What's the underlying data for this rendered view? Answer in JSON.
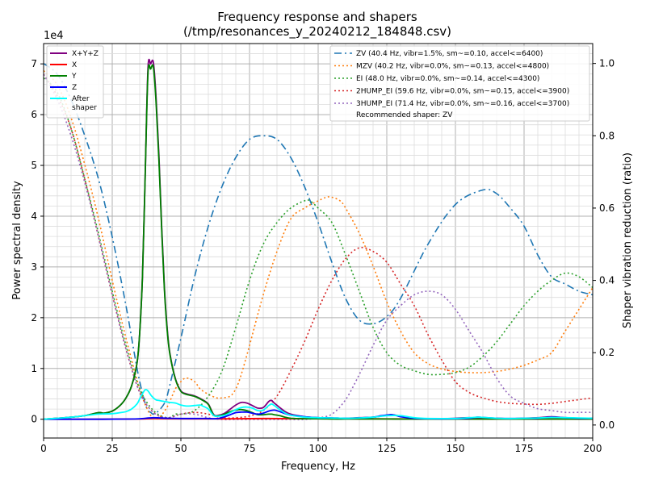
{
  "chart_data": {
    "type": "line",
    "title": "Frequency response and shapers",
    "subtitle": "(/tmp/resonances_y_20240212_184848.csv)",
    "xlabel": "Frequency, Hz",
    "ylabel": "Power spectral density",
    "y2label": "Shaper vibration reduction (ratio)",
    "y_offset_label": "1e4",
    "xlim": [
      0,
      200
    ],
    "ylim": [
      -3700,
      74000
    ],
    "y2lim": [
      -0.036,
      1.055
    ],
    "x_ticks": [
      0,
      25,
      50,
      75,
      100,
      125,
      150,
      175,
      200
    ],
    "x_tick_labels": [
      "0",
      "25",
      "50",
      "75",
      "100",
      "125",
      "150",
      "175",
      "200"
    ],
    "y_ticks": [
      0,
      10000,
      20000,
      30000,
      40000,
      50000,
      60000,
      70000
    ],
    "y_tick_labels": [
      "0",
      "1",
      "2",
      "3",
      "4",
      "5",
      "6",
      "7"
    ],
    "y2_ticks": [
      0,
      0.2,
      0.4,
      0.6,
      0.8,
      1.0
    ],
    "y2_tick_labels": [
      "0.0",
      "0.2",
      "0.4",
      "0.6",
      "0.8",
      "1.0"
    ],
    "grid": true,
    "legend_left_position": "top-left",
    "legend_right_position": "top-right",
    "psd_series": [
      {
        "name": "X+Y+Z",
        "color": "#800080",
        "x": [
          0,
          5,
          10,
          15,
          20,
          22,
          25,
          28,
          30,
          32,
          34,
          35,
          36,
          37,
          38,
          39,
          40,
          41,
          42,
          43,
          44,
          45,
          46,
          48,
          50,
          52,
          55,
          58,
          60,
          62,
          64,
          66,
          68,
          70,
          72,
          74,
          76,
          78,
          80,
          82,
          83,
          84,
          86,
          88,
          90,
          95,
          100,
          105,
          110,
          115,
          120,
          125,
          127,
          130,
          135,
          140,
          145,
          150,
          155,
          160,
          165,
          170,
          175,
          180,
          185,
          190,
          195,
          200
        ],
        "y": [
          0,
          200,
          400,
          700,
          1300,
          1200,
          1600,
          2800,
          4200,
          6500,
          11000,
          17000,
          28000,
          48000,
          69000,
          70000,
          70200,
          63000,
          52000,
          38000,
          26000,
          18000,
          13000,
          8000,
          5600,
          5000,
          4600,
          3800,
          3000,
          900,
          800,
          1200,
          2000,
          2800,
          3300,
          3200,
          2700,
          2200,
          2300,
          3500,
          3700,
          3200,
          2300,
          1500,
          1000,
          500,
          300,
          250,
          200,
          300,
          400,
          800,
          900,
          600,
          200,
          100,
          100,
          200,
          300,
          200,
          200,
          100,
          200,
          300,
          500,
          300,
          200,
          200
        ]
      },
      {
        "name": "X",
        "color": "#ff0000",
        "x": [
          0,
          20,
          35,
          40,
          45,
          60,
          70,
          80,
          90,
          100,
          110,
          120,
          130,
          140,
          160,
          180,
          200
        ],
        "y": [
          0,
          0,
          50,
          150,
          100,
          80,
          100,
          150,
          120,
          100,
          90,
          80,
          60,
          50,
          40,
          30,
          20
        ]
      },
      {
        "name": "Y",
        "color": "#008000",
        "x": [
          0,
          5,
          10,
          15,
          20,
          22,
          25,
          28,
          30,
          32,
          34,
          35,
          36,
          37,
          38,
          39,
          40,
          41,
          42,
          43,
          44,
          45,
          46,
          48,
          50,
          52,
          55,
          58,
          60,
          62,
          64,
          66,
          68,
          70,
          72,
          74,
          76,
          78,
          80,
          82,
          83,
          84,
          86,
          88,
          90,
          95,
          100,
          105,
          110,
          115,
          120,
          125,
          130,
          135,
          140,
          150,
          160,
          170,
          180,
          190,
          200
        ],
        "y": [
          0,
          200,
          400,
          700,
          1300,
          1200,
          1600,
          2800,
          4200,
          6500,
          11000,
          17000,
          28000,
          48000,
          68000,
          69000,
          69300,
          62000,
          51000,
          37500,
          25500,
          17600,
          12800,
          7900,
          5500,
          4900,
          4500,
          3700,
          2900,
          800,
          700,
          1000,
          1500,
          1800,
          1900,
          1700,
          1300,
          900,
          900,
          1000,
          1000,
          900,
          700,
          400,
          200,
          100,
          100,
          50,
          50,
          50,
          50,
          50,
          40,
          40,
          40,
          30,
          30,
          30,
          30,
          30,
          30
        ]
      },
      {
        "name": "Z",
        "color": "#0000ff",
        "x": [
          0,
          20,
          30,
          35,
          40,
          45,
          50,
          55,
          60,
          62,
          64,
          66,
          68,
          70,
          72,
          74,
          76,
          78,
          80,
          82,
          84,
          86,
          88,
          90,
          95,
          100,
          105,
          110,
          115,
          120,
          123,
          126,
          128,
          130,
          135,
          140,
          150,
          155,
          158,
          160,
          165,
          170,
          175,
          180,
          185,
          190,
          195,
          200
        ],
        "y": [
          0,
          0,
          30,
          100,
          300,
          200,
          150,
          150,
          150,
          100,
          200,
          500,
          900,
          1300,
          1400,
          1400,
          1200,
          1000,
          1200,
          1600,
          1800,
          1500,
          1100,
          800,
          500,
          300,
          250,
          200,
          250,
          400,
          700,
          900,
          800,
          500,
          200,
          100,
          100,
          200,
          400,
          350,
          200,
          150,
          200,
          200,
          400,
          300,
          200,
          200
        ]
      },
      {
        "name": "After\nshaper",
        "color": "#00ffff",
        "x": [
          0,
          5,
          10,
          15,
          20,
          25,
          28,
          30,
          32,
          34,
          35,
          36,
          37,
          38,
          39,
          40,
          41,
          42,
          43,
          44,
          45,
          46,
          48,
          50,
          52,
          55,
          57,
          58,
          60,
          62,
          64,
          66,
          68,
          70,
          72,
          74,
          76,
          78,
          80,
          82,
          83,
          84,
          86,
          88,
          90,
          95,
          100,
          105,
          110,
          115,
          120,
          125,
          130,
          135,
          140,
          150,
          155,
          158,
          160,
          165,
          170,
          175,
          180,
          185,
          190,
          195,
          200
        ],
        "y": [
          0,
          200,
          400,
          700,
          1000,
          1100,
          1300,
          1500,
          2000,
          3000,
          4000,
          5000,
          5800,
          5600,
          4800,
          4200,
          3800,
          3700,
          3600,
          3500,
          3400,
          3300,
          3200,
          2800,
          2600,
          2700,
          2800,
          2600,
          2000,
          700,
          600,
          800,
          1300,
          1900,
          2300,
          2400,
          2200,
          1700,
          1800,
          2700,
          3000,
          2700,
          1900,
          1200,
          800,
          400,
          300,
          250,
          200,
          250,
          400,
          700,
          700,
          300,
          150,
          150,
          300,
          400,
          350,
          200,
          150,
          200,
          250,
          350,
          300,
          250,
          200
        ]
      }
    ],
    "shaper_series": [
      {
        "name": "ZV (40.4 Hz, vibr=1.5%, sm~=0.10, accel<=6400)",
        "color": "#1f77b4",
        "dash": "dashdot",
        "x": [
          0,
          5,
          10,
          15,
          20,
          25,
          30,
          33,
          35,
          37,
          38,
          39,
          40,
          42,
          44,
          45,
          50,
          55,
          60,
          65,
          70,
          75,
          80,
          85,
          90,
          95,
          100,
          105,
          110,
          115,
          120,
          125,
          130,
          140,
          150,
          160,
          165,
          170,
          175,
          180,
          185,
          190,
          195,
          200
        ],
        "y": [
          1.0,
          0.97,
          0.9,
          0.8,
          0.68,
          0.52,
          0.33,
          0.2,
          0.12,
          0.06,
          0.04,
          0.035,
          0.03,
          0.04,
          0.06,
          0.08,
          0.24,
          0.41,
          0.55,
          0.66,
          0.74,
          0.79,
          0.8,
          0.79,
          0.74,
          0.66,
          0.56,
          0.45,
          0.35,
          0.29,
          0.28,
          0.3,
          0.35,
          0.5,
          0.61,
          0.65,
          0.64,
          0.6,
          0.55,
          0.47,
          0.41,
          0.39,
          0.37,
          0.36
        ]
      },
      {
        "name": "MZV (40.2 Hz, vibr=0.0%, sm~=0.13, accel<=4800)",
        "color": "#ff7f0e",
        "dash": "dotted",
        "x": [
          0,
          5,
          10,
          15,
          20,
          25,
          30,
          35,
          38,
          40,
          42,
          45,
          48,
          50,
          52,
          55,
          57,
          60,
          63,
          65,
          68,
          70,
          72,
          75,
          80,
          85,
          90,
          95,
          100,
          103,
          105,
          108,
          110,
          115,
          120,
          125,
          130,
          135,
          140,
          145,
          150,
          155,
          160,
          165,
          170,
          175,
          180,
          185,
          190,
          195,
          200
        ],
        "y": [
          0.98,
          0.94,
          0.85,
          0.72,
          0.57,
          0.4,
          0.24,
          0.1,
          0.04,
          0.02,
          0.02,
          0.05,
          0.1,
          0.12,
          0.13,
          0.12,
          0.1,
          0.085,
          0.075,
          0.075,
          0.08,
          0.1,
          0.14,
          0.22,
          0.36,
          0.48,
          0.57,
          0.6,
          0.62,
          0.63,
          0.63,
          0.62,
          0.6,
          0.53,
          0.44,
          0.34,
          0.26,
          0.2,
          0.17,
          0.155,
          0.148,
          0.145,
          0.145,
          0.148,
          0.155,
          0.165,
          0.18,
          0.2,
          0.26,
          0.32,
          0.38
        ]
      },
      {
        "name": "EI (48.0 Hz, vibr=0.0%, sm~=0.14, accel<=4300)",
        "color": "#2ca02c",
        "dash": "dotted",
        "x": [
          0,
          5,
          10,
          15,
          20,
          25,
          30,
          35,
          40,
          45,
          48,
          50,
          55,
          60,
          65,
          70,
          75,
          80,
          85,
          90,
          95,
          97,
          100,
          105,
          110,
          115,
          120,
          125,
          130,
          135,
          140,
          145,
          150,
          155,
          160,
          165,
          170,
          175,
          180,
          185,
          190,
          195,
          200
        ],
        "y": [
          0.96,
          0.92,
          0.82,
          0.68,
          0.53,
          0.37,
          0.22,
          0.1,
          0.04,
          0.02,
          0.03,
          0.03,
          0.04,
          0.08,
          0.15,
          0.27,
          0.4,
          0.5,
          0.56,
          0.6,
          0.62,
          0.62,
          0.6,
          0.56,
          0.47,
          0.37,
          0.27,
          0.2,
          0.165,
          0.15,
          0.14,
          0.14,
          0.145,
          0.16,
          0.19,
          0.23,
          0.28,
          0.33,
          0.37,
          0.4,
          0.42,
          0.41,
          0.38
        ]
      },
      {
        "name": "2HUMP_EI (59.6 Hz, vibr=0.0%, sm~=0.15, accel<=3900)",
        "color": "#d62728",
        "dash": "dotted",
        "x": [
          0,
          5,
          10,
          15,
          20,
          25,
          30,
          35,
          40,
          45,
          50,
          55,
          60,
          65,
          70,
          75,
          80,
          85,
          90,
          95,
          100,
          105,
          110,
          115,
          120,
          125,
          130,
          135,
          140,
          145,
          150,
          155,
          160,
          165,
          170,
          175,
          180,
          185,
          190,
          195,
          200
        ],
        "y": [
          0.97,
          0.91,
          0.82,
          0.68,
          0.52,
          0.36,
          0.21,
          0.09,
          0.035,
          0.02,
          0.03,
          0.035,
          0.03,
          0.02,
          0.02,
          0.025,
          0.04,
          0.08,
          0.15,
          0.23,
          0.32,
          0.4,
          0.46,
          0.49,
          0.48,
          0.45,
          0.39,
          0.33,
          0.25,
          0.18,
          0.12,
          0.09,
          0.075,
          0.065,
          0.06,
          0.058,
          0.057,
          0.06,
          0.065,
          0.07,
          0.075
        ]
      },
      {
        "name": "3HUMP_EI (71.4 Hz, vibr=0.0%, sm~=0.16, accel<=3700)",
        "color": "#9467bd",
        "dash": "dotted",
        "x": [
          0,
          5,
          10,
          15,
          20,
          25,
          30,
          35,
          40,
          45,
          50,
          55,
          60,
          65,
          70,
          75,
          80,
          85,
          90,
          95,
          100,
          105,
          110,
          115,
          120,
          125,
          130,
          135,
          140,
          145,
          150,
          155,
          160,
          165,
          170,
          175,
          180,
          185,
          190,
          195,
          200
        ],
        "y": [
          0.97,
          0.9,
          0.8,
          0.67,
          0.52,
          0.36,
          0.21,
          0.09,
          0.035,
          0.02,
          0.03,
          0.03,
          0.02,
          0.015,
          0.015,
          0.015,
          0.015,
          0.015,
          0.015,
          0.015,
          0.02,
          0.03,
          0.07,
          0.14,
          0.22,
          0.29,
          0.33,
          0.36,
          0.37,
          0.36,
          0.32,
          0.26,
          0.2,
          0.13,
          0.08,
          0.06,
          0.045,
          0.04,
          0.035,
          0.035,
          0.035
        ]
      }
    ],
    "legend_extra": "Recommended shaper: ZV"
  }
}
